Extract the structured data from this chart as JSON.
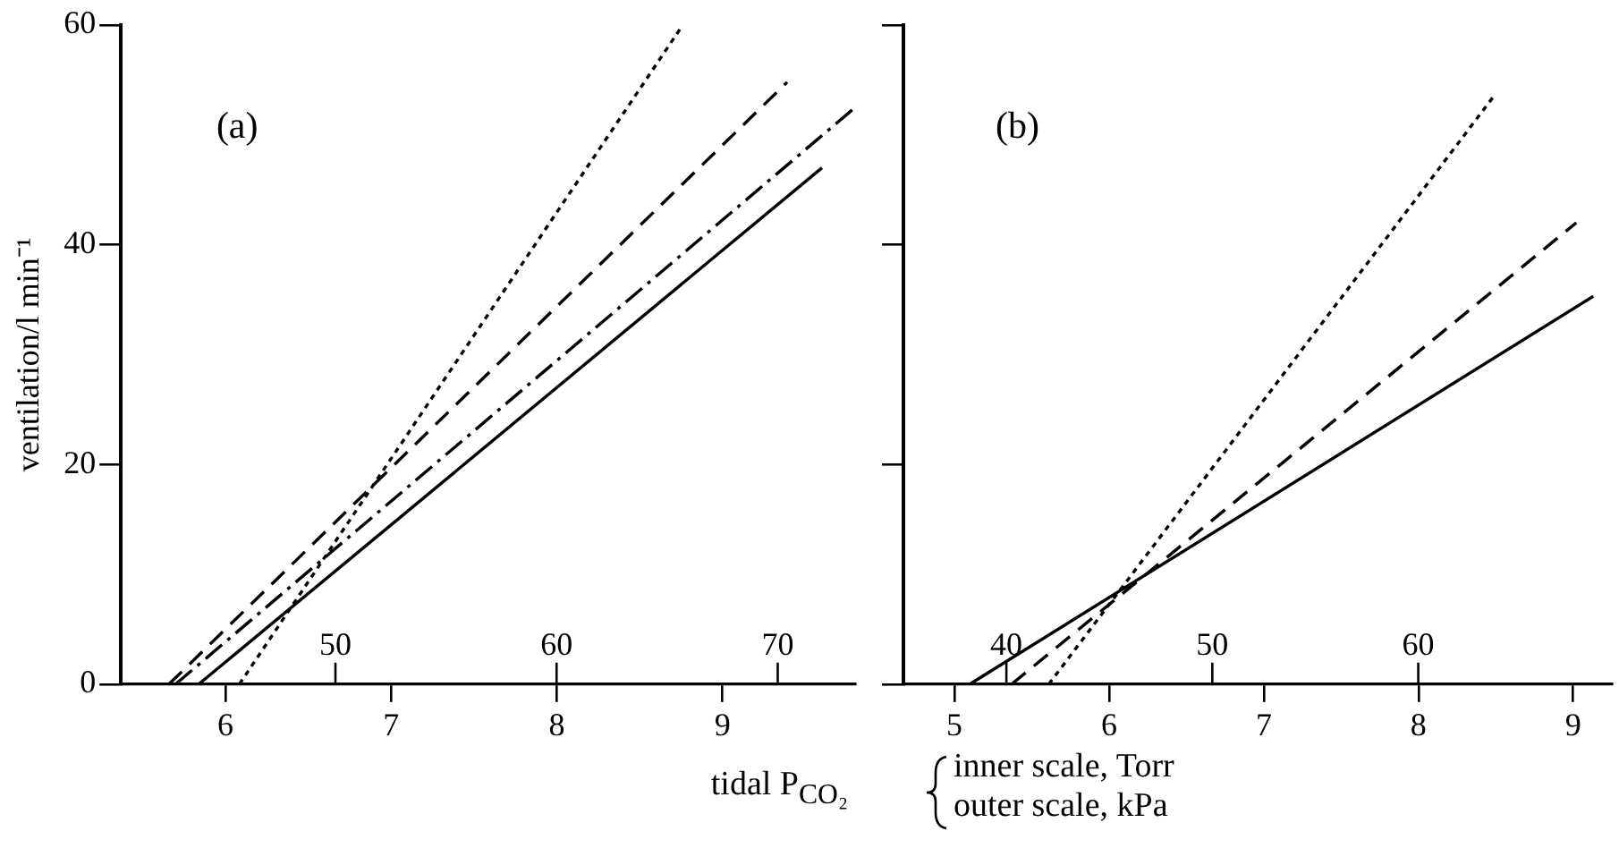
{
  "chart_data": [
    {
      "type": "line",
      "ylabel": "ventilation/l min⁻¹",
      "xlabel": "tidal P$_{CO₂}$",
      "annotations": [
        "(a)"
      ],
      "xlim": [
        5.37,
        9.8
      ],
      "xticks": [
        6,
        7,
        8,
        9
      ],
      "x2lim": [
        40.3,
        73.5
      ],
      "x2ticks": [
        50,
        60,
        70
      ],
      "ylim": [
        0,
        60
      ],
      "yticks": [
        0,
        20,
        40,
        60
      ],
      "grid": false,
      "marker": "none",
      "series": [
        {
          "color": "#000000",
          "line_style": "dotted",
          "x": [
            6.085,
            8.76
          ],
          "values": [
            0,
            60
          ]
        },
        {
          "color": "#000000",
          "line_style": "dashed",
          "x": [
            5.66,
            9.39
          ],
          "values": [
            0,
            54.8
          ]
        },
        {
          "color": "#000000",
          "line_style": "dashdot",
          "x": [
            5.7,
            9.8
          ],
          "values": [
            0,
            52.5
          ]
        },
        {
          "color": "#000000",
          "line_style": "solid",
          "x": [
            5.84,
            9.6
          ],
          "values": [
            0,
            47
          ]
        }
      ]
    },
    {
      "type": "line",
      "annotations": [
        "(b)",
        "inner scale, Torr",
        "outer scale, kPa"
      ],
      "xlim": [
        4.67,
        9.25
      ],
      "xticks": [
        5,
        6,
        7,
        8,
        9
      ],
      "x2lim": [
        35.0,
        69.4
      ],
      "x2ticks": [
        40,
        50,
        60
      ],
      "ylim": [
        0,
        60
      ],
      "yticks": [
        0,
        20,
        40,
        60
      ],
      "tick_labels": "x",
      "grid": false,
      "marker": "none",
      "series": [
        {
          "color": "#000000",
          "line_style": "solid",
          "x": [
            5.1,
            9.13
          ],
          "values": [
            0,
            35.3
          ]
        },
        {
          "color": "#000000",
          "line_style": "dashed",
          "x": [
            5.37,
            9.02
          ],
          "values": [
            0,
            42
          ]
        },
        {
          "color": "#000000",
          "line_style": "dotted",
          "x": [
            5.61,
            8.48
          ],
          "values": [
            0,
            53.4
          ]
        }
      ]
    }
  ]
}
